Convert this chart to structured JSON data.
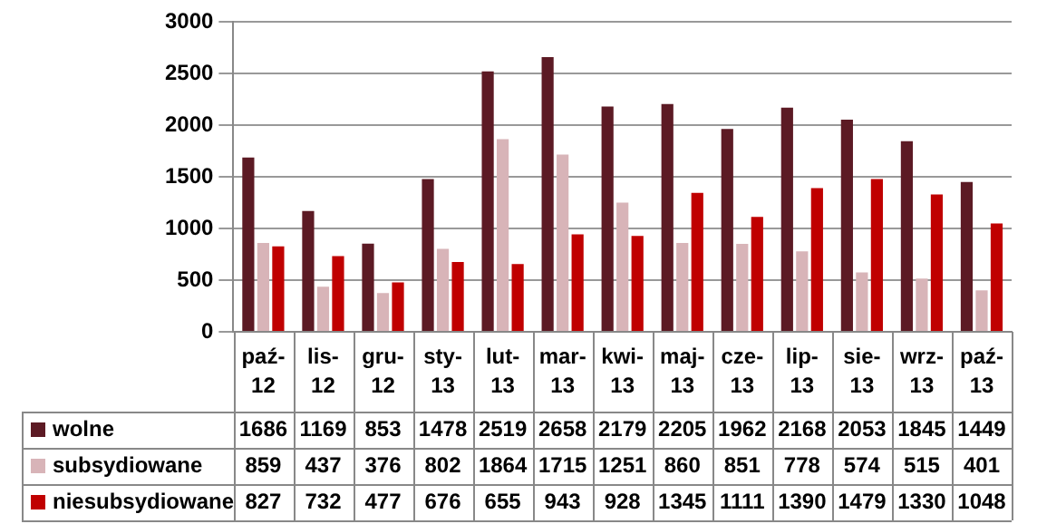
{
  "chart_data": {
    "type": "bar",
    "categories": [
      "paź-12",
      "lis-12",
      "gru-12",
      "sty-13",
      "lut-13",
      "mar-13",
      "kwi-13",
      "maj-13",
      "cze-13",
      "lip-13",
      "sie-13",
      "wrz-13",
      "paź-13"
    ],
    "series": [
      {
        "name": "wolne",
        "color": "#5c1a24",
        "values": [
          1686,
          1169,
          853,
          1478,
          2519,
          2658,
          2179,
          2205,
          1962,
          2168,
          2053,
          1845,
          1449
        ]
      },
      {
        "name": "subsydiowane",
        "color": "#d8b4b8",
        "values": [
          859,
          437,
          376,
          802,
          1864,
          1715,
          1251,
          860,
          851,
          778,
          574,
          515,
          401
        ]
      },
      {
        "name": "niesubsydiowane",
        "color": "#c00000",
        "values": [
          827,
          732,
          477,
          676,
          655,
          943,
          928,
          1345,
          1111,
          1390,
          1479,
          1330,
          1048
        ]
      }
    ],
    "ylim": [
      0,
      3000
    ],
    "yticks": [
      0,
      500,
      1000,
      1500,
      2000,
      2500,
      3000
    ],
    "grid": "y",
    "legend": "bottom",
    "data_labels": true
  }
}
